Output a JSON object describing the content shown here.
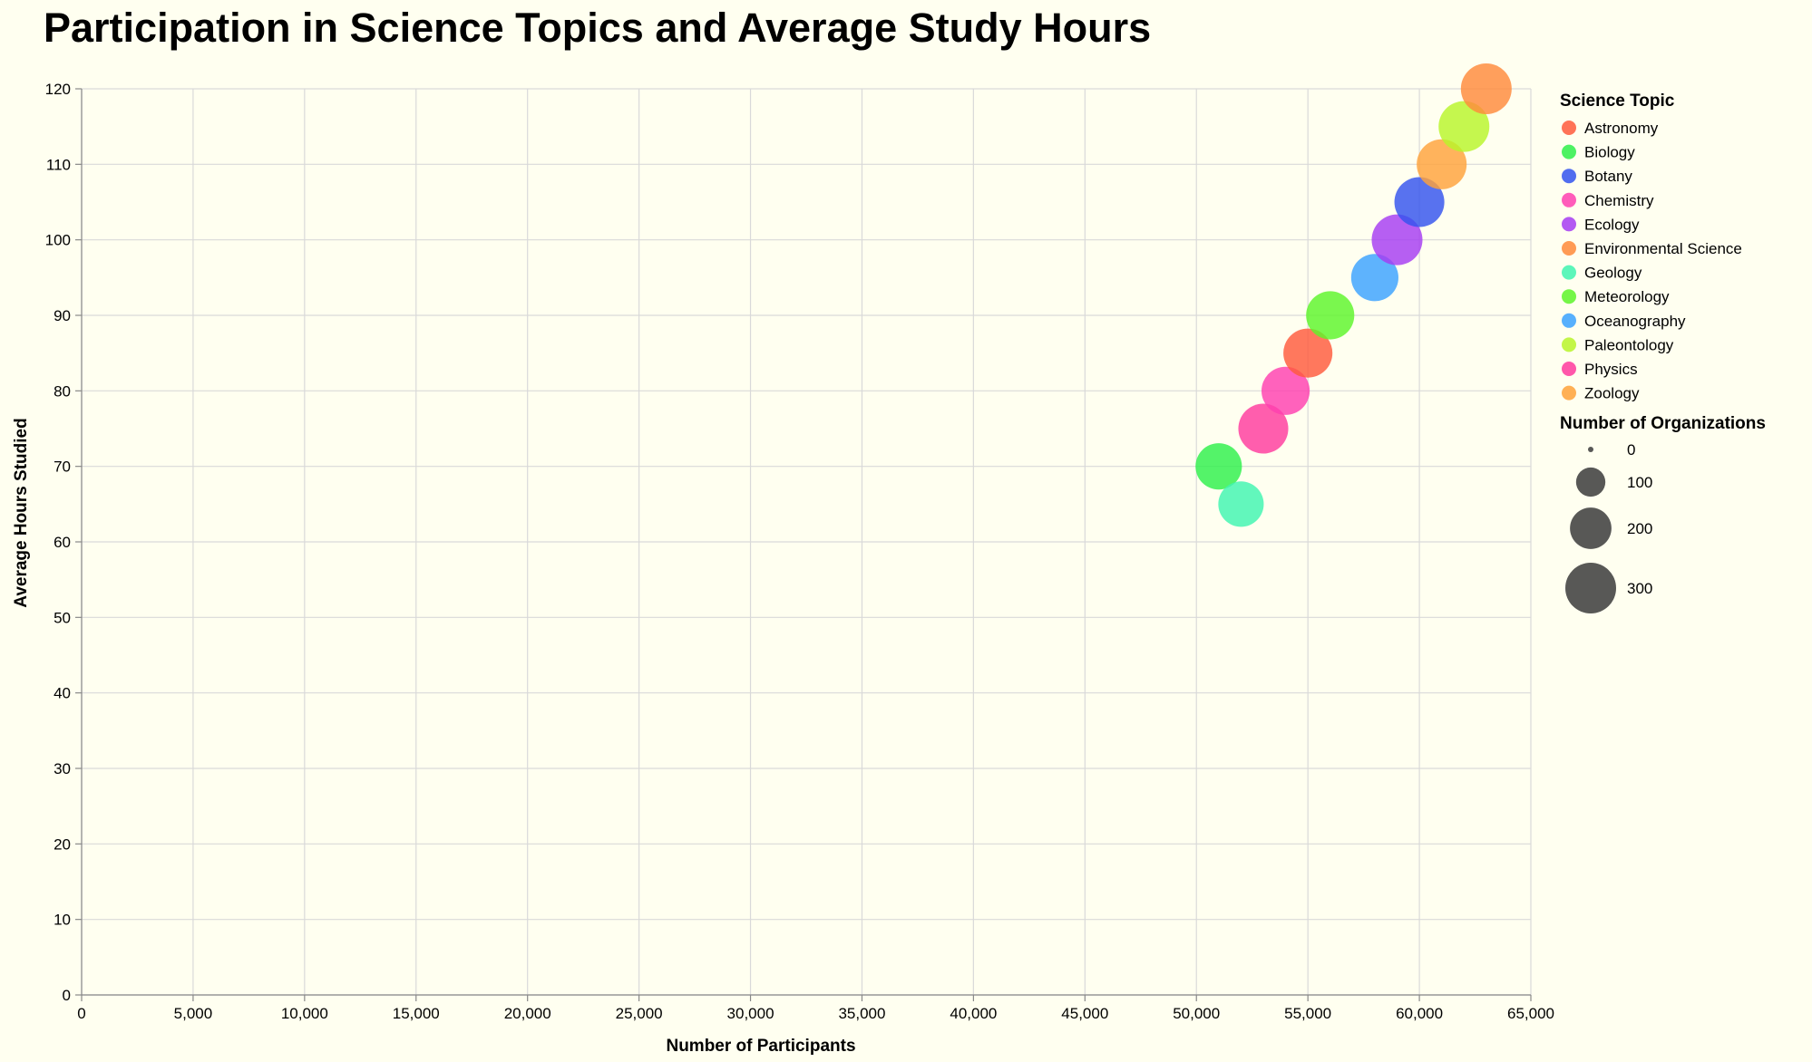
{
  "chart_data": {
    "type": "scatter",
    "title": "Participation in Science Topics and Average Study Hours",
    "xlabel": "Number of Participants",
    "ylabel": "Average Hours Studied",
    "xlim": [
      0,
      65000
    ],
    "ylim": [
      0,
      120
    ],
    "x_ticks": [
      0,
      5000,
      10000,
      15000,
      20000,
      25000,
      30000,
      35000,
      40000,
      45000,
      50000,
      55000,
      60000,
      65000
    ],
    "x_tick_labels": [
      "0",
      "5,000",
      "10,000",
      "15,000",
      "20,000",
      "25,000",
      "30,000",
      "35,000",
      "40,000",
      "45,000",
      "50,000",
      "55,000",
      "60,000",
      "65,000"
    ],
    "y_ticks": [
      0,
      10,
      20,
      30,
      40,
      50,
      60,
      70,
      80,
      90,
      100,
      110,
      120
    ],
    "y_tick_labels": [
      "0",
      "10",
      "20",
      "30",
      "40",
      "50",
      "60",
      "70",
      "80",
      "90",
      "100",
      "110",
      "120"
    ],
    "grid": true,
    "legend_position": "right",
    "color_legend": {
      "title": "Science Topic",
      "entries": [
        {
          "label": "Astronomy",
          "color": "#ff5a3c"
        },
        {
          "label": "Biology",
          "color": "#2ef04a"
        },
        {
          "label": "Botany",
          "color": "#3353ee"
        },
        {
          "label": "Chemistry",
          "color": "#ff3fb0"
        },
        {
          "label": "Ecology",
          "color": "#a63cf2"
        },
        {
          "label": "Environmental Science",
          "color": "#ff8a3a"
        },
        {
          "label": "Geology",
          "color": "#3ff5b0"
        },
        {
          "label": "Meteorology",
          "color": "#5df52a"
        },
        {
          "label": "Oceanography",
          "color": "#3aa2ff"
        },
        {
          "label": "Paleontology",
          "color": "#b8f52a"
        },
        {
          "label": "Physics",
          "color": "#ff3a9e"
        },
        {
          "label": "Zoology",
          "color": "#ffa23a"
        }
      ]
    },
    "size_legend": {
      "title": "Number of Organizations",
      "values": [
        0,
        100,
        200,
        300
      ],
      "labels": [
        "0",
        "100",
        "200",
        "300"
      ],
      "max": 300
    },
    "points": [
      {
        "topic": "Biology",
        "x": 51000,
        "y": 70,
        "size": 250
      },
      {
        "topic": "Geology",
        "x": 52000,
        "y": 65,
        "size": 240
      },
      {
        "topic": "Physics",
        "x": 53000,
        "y": 75,
        "size": 290
      },
      {
        "topic": "Chemistry",
        "x": 54000,
        "y": 80,
        "size": 270
      },
      {
        "topic": "Astronomy",
        "x": 55000,
        "y": 85,
        "size": 280
      },
      {
        "topic": "Meteorology",
        "x": 56000,
        "y": 90,
        "size": 270
      },
      {
        "topic": "Oceanography",
        "x": 58000,
        "y": 95,
        "size": 260
      },
      {
        "topic": "Ecology",
        "x": 59000,
        "y": 100,
        "size": 300
      },
      {
        "topic": "Botany",
        "x": 60000,
        "y": 105,
        "size": 290
      },
      {
        "topic": "Zoology",
        "x": 61000,
        "y": 110,
        "size": 290
      },
      {
        "topic": "Paleontology",
        "x": 62000,
        "y": 115,
        "size": 300
      },
      {
        "topic": "Environmental Science",
        "x": 63000,
        "y": 120,
        "size": 300
      }
    ]
  }
}
